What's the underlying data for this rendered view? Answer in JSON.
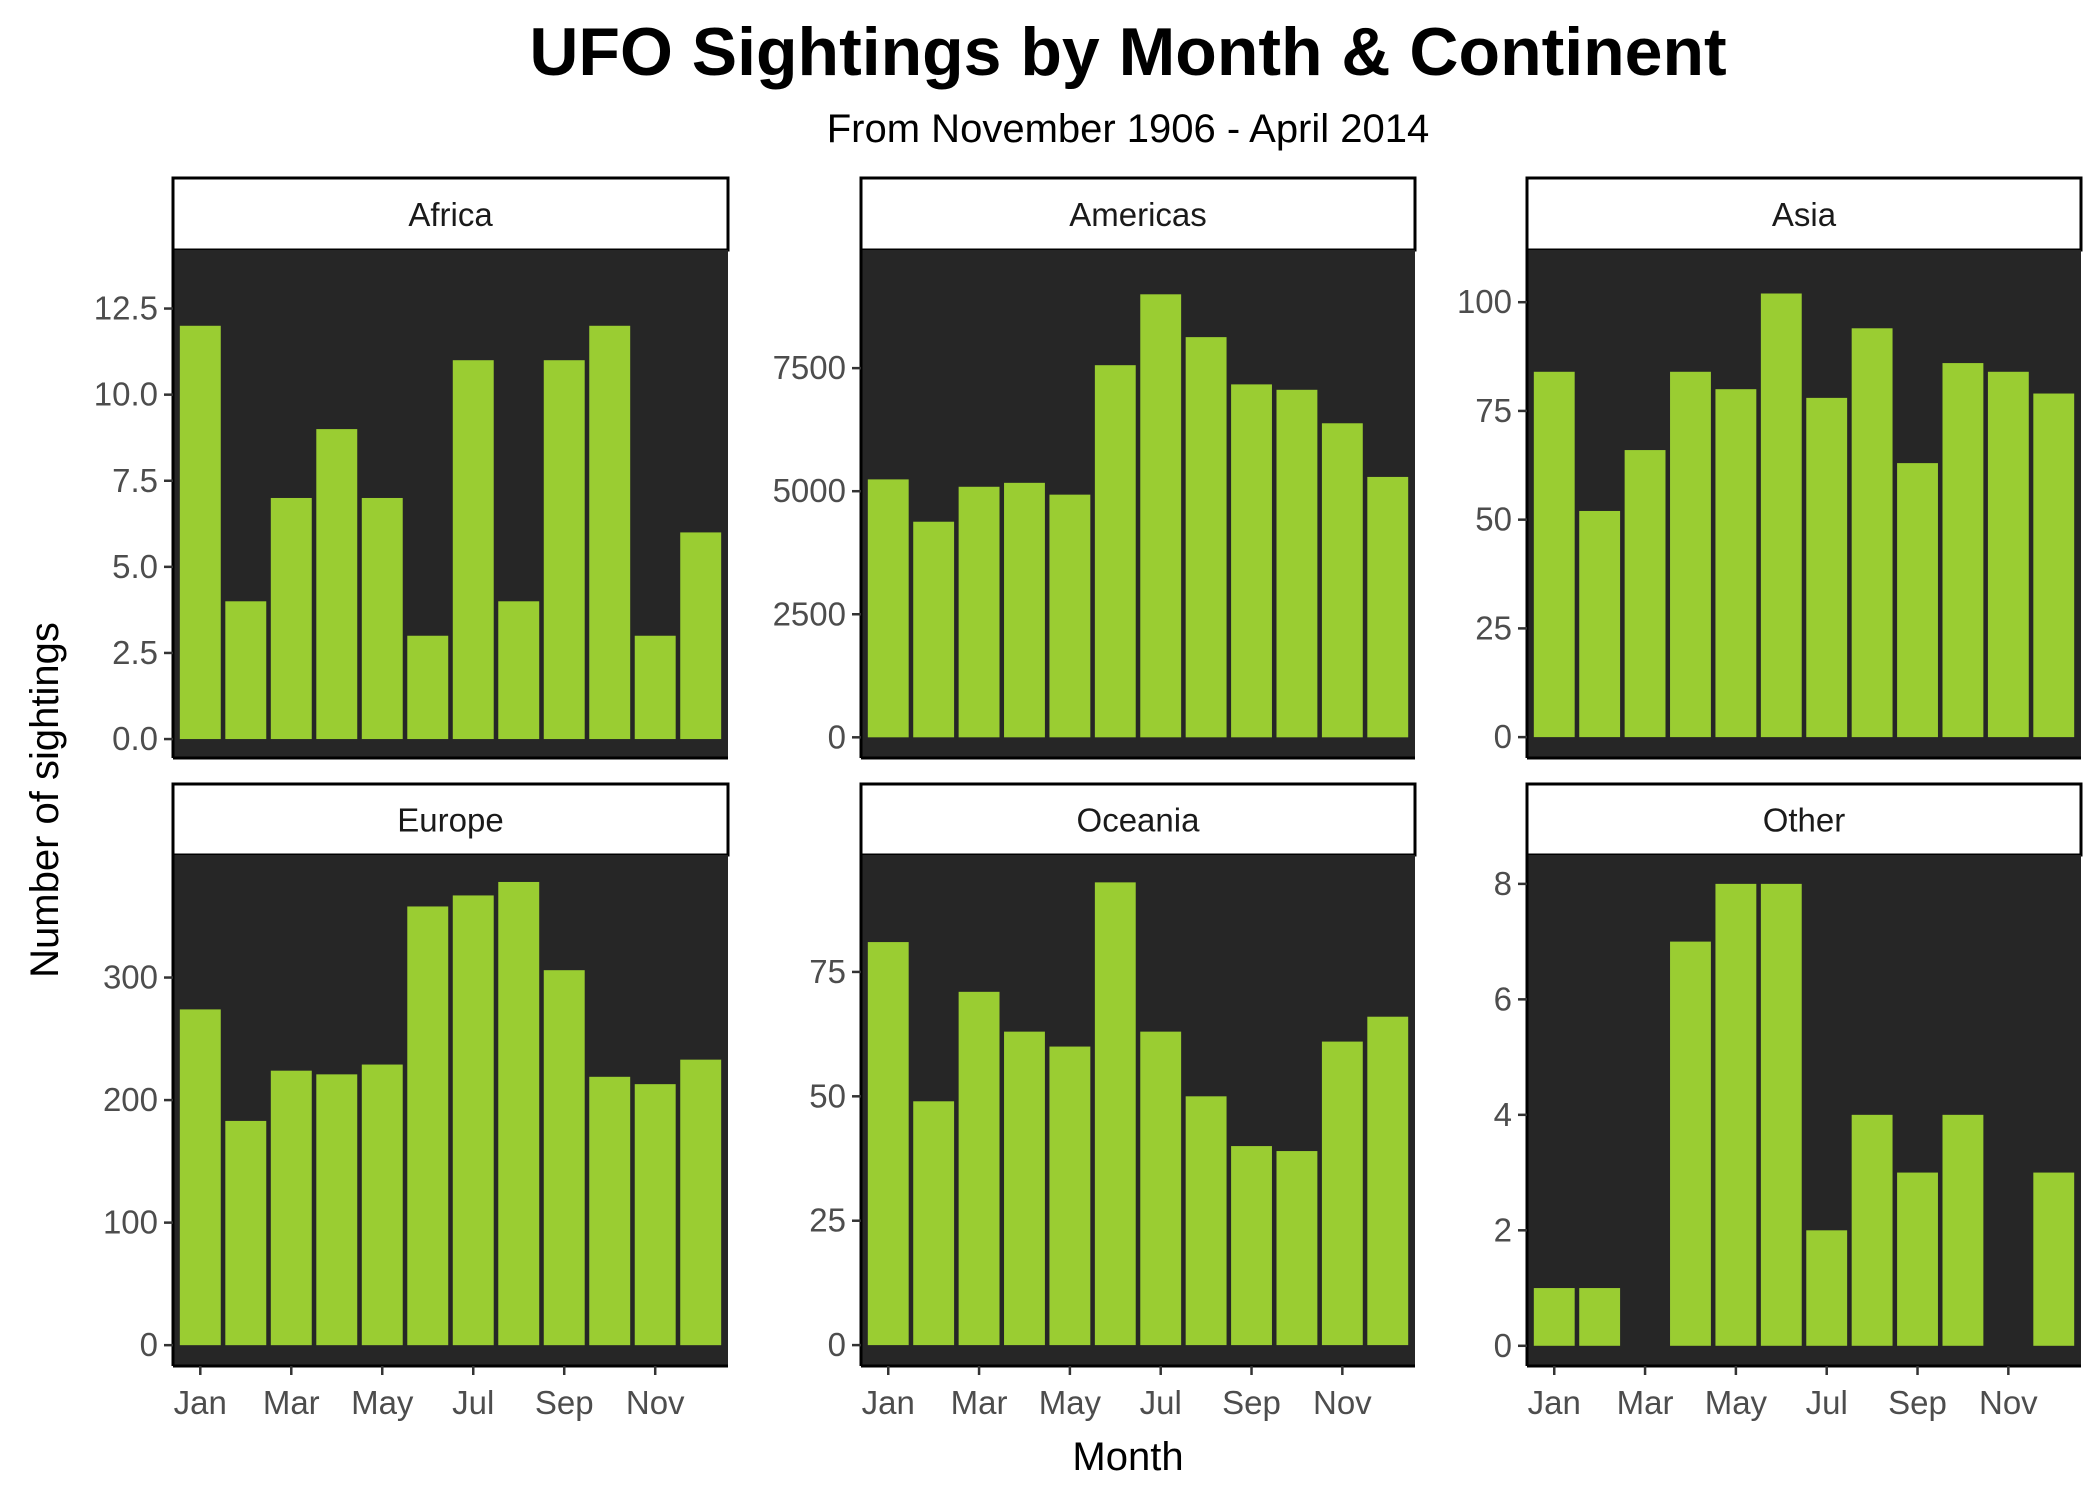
{
  "chart_data": {
    "type": "bar",
    "title": "UFO Sightings by Month & Continent",
    "subtitle": "From November 1906 - April 2014",
    "xlabel": "Month",
    "ylabel": "Number of sightings",
    "months": [
      "Jan",
      "Feb",
      "Mar",
      "Apr",
      "May",
      "Jun",
      "Jul",
      "Aug",
      "Sep",
      "Oct",
      "Nov",
      "Dec"
    ],
    "x_tick_labels": [
      "Jan",
      "Mar",
      "May",
      "Jul",
      "Sep",
      "Nov"
    ],
    "bar_color": "#9acd32",
    "panel_background": "#262626",
    "panels": [
      {
        "name": "Africa",
        "values": [
          12,
          4,
          7,
          9,
          7,
          3,
          11,
          4,
          11,
          12,
          3,
          6
        ],
        "ylim": [
          -0.55,
          14.2
        ],
        "yticks": [
          0,
          2.5,
          5,
          7.5,
          10,
          12.5
        ],
        "ytick_labels": [
          "0.0",
          "2.5",
          "5.0",
          "7.5",
          "10.0",
          "12.5"
        ]
      },
      {
        "name": "Americas",
        "values": [
          5240,
          4380,
          5090,
          5170,
          4930,
          7560,
          9000,
          8130,
          7170,
          7060,
          6380,
          5290
        ],
        "ylim": [
          -420,
          9900
        ],
        "yticks": [
          0,
          2500,
          5000,
          7500
        ],
        "ytick_labels": [
          "0",
          "2500",
          "5000",
          "7500"
        ]
      },
      {
        "name": "Asia",
        "values": [
          84,
          52,
          66,
          84,
          80,
          102,
          78,
          94,
          63,
          86,
          84,
          79
        ],
        "ylim": [
          -4.8,
          112
        ],
        "yticks": [
          0,
          25,
          50,
          75,
          100
        ],
        "ytick_labels": [
          "0",
          "25",
          "50",
          "75",
          "100"
        ]
      },
      {
        "name": "Europe",
        "values": [
          274,
          183,
          224,
          221,
          229,
          358,
          367,
          378,
          306,
          219,
          213,
          233
        ],
        "ylim": [
          -17,
          400
        ],
        "yticks": [
          0,
          100,
          200,
          300
        ],
        "ytick_labels": [
          "0",
          "100",
          "200",
          "300"
        ]
      },
      {
        "name": "Oceania",
        "values": [
          81,
          49,
          71,
          63,
          60,
          93,
          63,
          50,
          40,
          39,
          61,
          66
        ],
        "ylim": [
          -4.2,
          98.5
        ],
        "yticks": [
          0,
          25,
          50,
          75
        ],
        "ytick_labels": [
          "0",
          "25",
          "50",
          "75"
        ]
      },
      {
        "name": "Other",
        "values": [
          1,
          1,
          0,
          7,
          8,
          8,
          2,
          4,
          3,
          4,
          0,
          3
        ],
        "ylim": [
          -0.35,
          8.5
        ],
        "yticks": [
          0,
          2,
          4,
          6,
          8
        ],
        "ytick_labels": [
          "0",
          "2",
          "4",
          "6",
          "8"
        ]
      }
    ]
  }
}
